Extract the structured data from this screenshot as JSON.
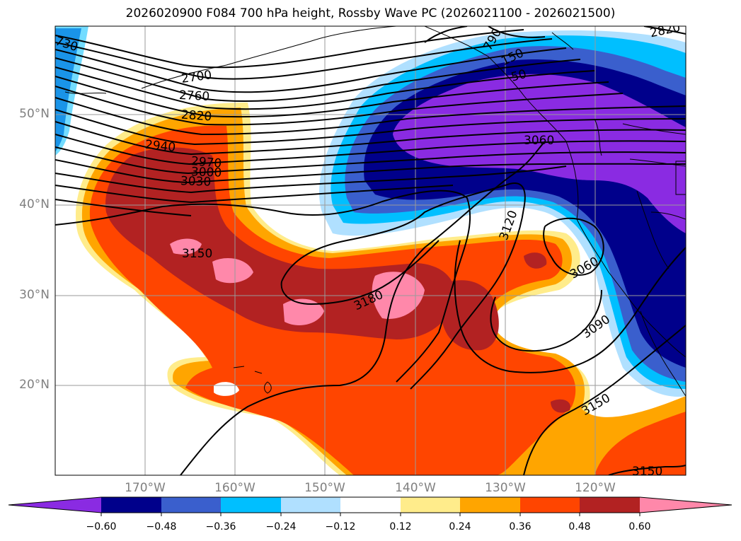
{
  "title": "2026020900 F084 700 hPa height, Rossby Wave PC (2026021100 - 2026021500)",
  "lat_labels": [
    "50°N",
    "40°N",
    "30°N",
    "20°N"
  ],
  "lon_labels": [
    "170°W",
    "160°W",
    "150°W",
    "140°W",
    "130°W",
    "120°W"
  ],
  "contour_labels": [
    "730",
    "2700",
    "2760",
    "2820",
    "2940",
    "2970",
    "3000",
    "3030",
    "3150",
    "3180",
    "3120",
    "3060",
    "3090",
    "3150",
    "3150",
    "2820",
    "790",
    "150",
    "50"
  ],
  "colorbar": {
    "ticks": [
      "−0.60",
      "−0.48",
      "−0.36",
      "−0.24",
      "−0.12",
      "0.12",
      "0.24",
      "0.36",
      "0.48",
      "0.60"
    ],
    "colors": [
      "#8a2be2",
      "#00008b",
      "#3a5fcd",
      "#00bfff",
      "#b0e0ff",
      "#ffffff",
      "#ffec8b",
      "#ffa500",
      "#ff4500",
      "#b22222",
      "#ff88aa"
    ]
  },
  "colors": {
    "dark_purple": "#8a2be2",
    "navy": "#00008b",
    "royal_blue": "#3a5fcd",
    "sky_blue": "#00bfff",
    "light_blue": "#b0e0ff",
    "light_yellow": "#ffec8b",
    "orange": "#ffa500",
    "red_orange": "#ff4500",
    "firebrick": "#b22222",
    "pink": "#ff88aa"
  }
}
